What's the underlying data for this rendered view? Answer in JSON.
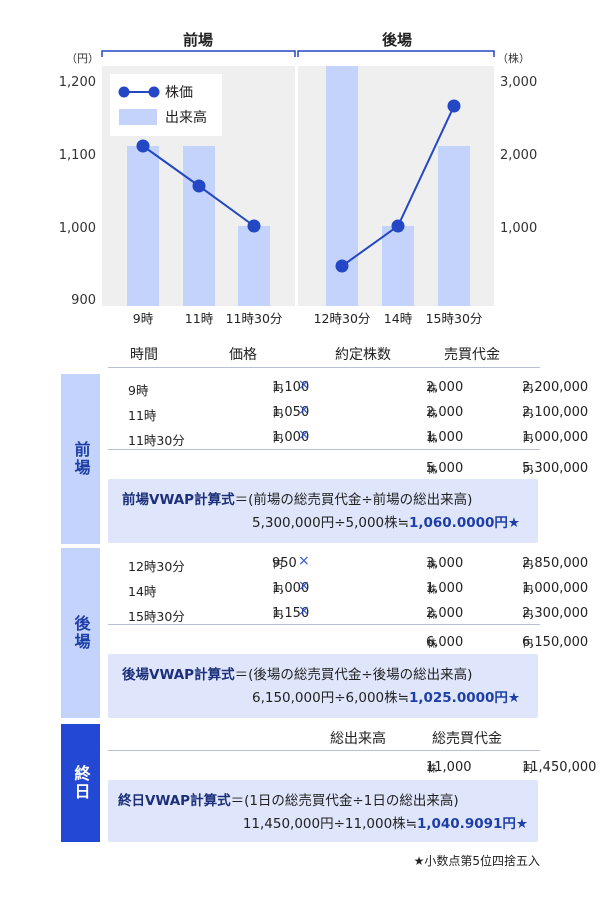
{
  "chart_data": {
    "type": "bar+line",
    "groups": [
      "前場",
      "後場"
    ],
    "categories": [
      "9時",
      "11時",
      "11時30分",
      "12時30分",
      "14時",
      "15時30分"
    ],
    "left_axis": {
      "unit": "（円）",
      "ticks": [
        "1,200",
        "1,100",
        "1,000",
        "900"
      ],
      "range": [
        900,
        1200
      ]
    },
    "right_axis": {
      "unit": "（株）",
      "ticks": [
        "3,000",
        "2,000",
        "1,000"
      ],
      "range": [
        0,
        3000
      ]
    },
    "series": [
      {
        "name": "株価",
        "kind": "line",
        "axis": "left",
        "values": [
          1100,
          1050,
          1000,
          950,
          1000,
          1150
        ]
      },
      {
        "name": "出来高",
        "kind": "bar",
        "axis": "right",
        "values": [
          2000,
          2000,
          1000,
          3000,
          1000,
          2000
        ]
      }
    ],
    "legend": [
      "株価",
      "出来高"
    ],
    "colors": {
      "price": "#2347c5",
      "volume": "#c4d3fb",
      "plot_bg": "#efefef"
    }
  },
  "table": {
    "headers": {
      "time": "時間",
      "price": "価格",
      "volume": "約定株数",
      "value": "売買代金"
    },
    "units": {
      "yen": "円",
      "shares": "株"
    },
    "cross": "×",
    "zenba": {
      "label": "前場",
      "rows": [
        {
          "time": "9時",
          "price": "1,100",
          "volume": "2,000",
          "value": "2,200,000"
        },
        {
          "time": "11時",
          "price": "1,050",
          "volume": "2,000",
          "value": "2,100,000"
        },
        {
          "time": "11時30分",
          "price": "1,000",
          "volume": "1,000",
          "value": "1,000,000"
        }
      ],
      "total_volume": "5,000",
      "total_value": "5,300,000",
      "formula_title": "前場VWAP計算式",
      "formula_rest": "＝(前場の総売買代金÷前場の総出来高)",
      "calc": "5,300,000円÷5,000株≒",
      "result": "1,060.0000円★"
    },
    "goba": {
      "label": "後場",
      "rows": [
        {
          "time": "12時30分",
          "price": "950",
          "volume": "3,000",
          "value": "2,850,000"
        },
        {
          "time": "14時",
          "price": "1,000",
          "volume": "1,000",
          "value": "1,000,000"
        },
        {
          "time": "15時30分",
          "price": "1,150",
          "volume": "2,000",
          "value": "2,300,000"
        }
      ],
      "total_volume": "6,000",
      "total_value": "6,150,000",
      "formula_title": "後場VWAP計算式",
      "formula_rest": "＝(後場の総売買代金÷後場の総出来高)",
      "calc": "6,150,000円÷6,000株≒",
      "result": "1,025.0000円★"
    },
    "day": {
      "label": "終日",
      "header_volume": "総出来高",
      "header_value": "総売買代金",
      "total_volume": "11,000",
      "total_value": "11,450,000",
      "formula_title": "終日VWAP計算式",
      "formula_rest": "＝(1日の総売買代金÷1日の総出来高)",
      "calc": "11,450,000円÷11,000株≒",
      "result": "1,040.9091円★"
    }
  },
  "footnote": "★小数点第5位四捨五入"
}
